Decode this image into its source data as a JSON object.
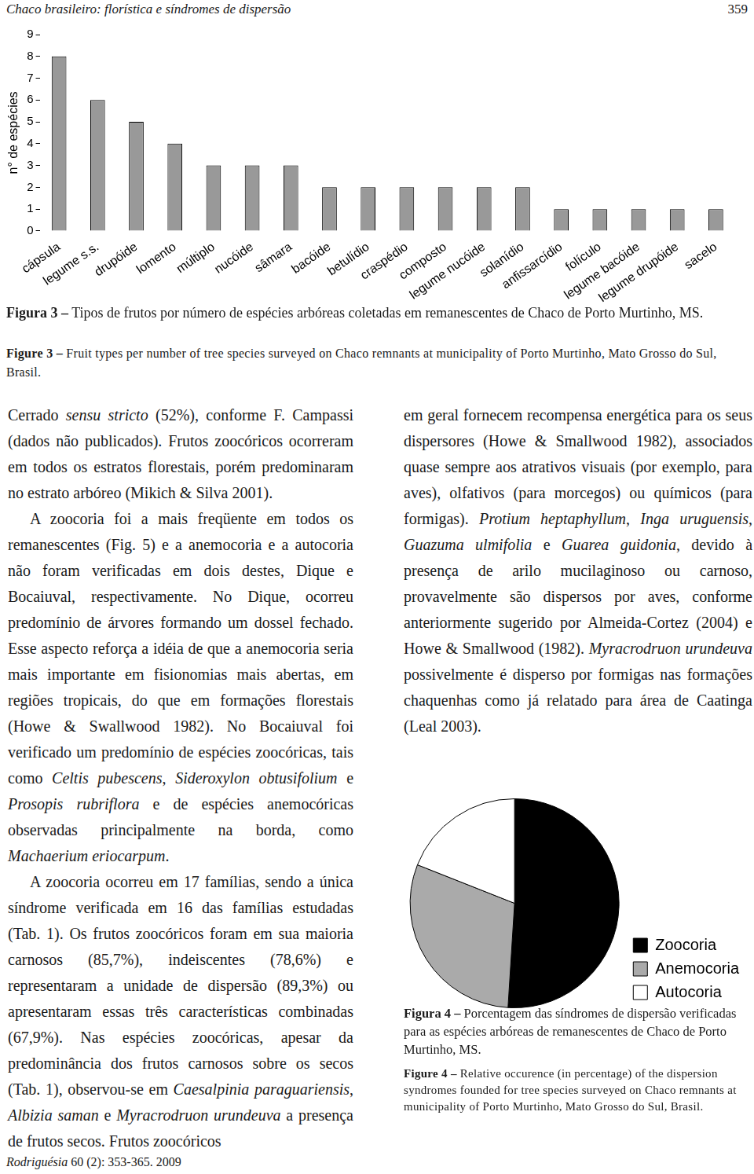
{
  "header": {
    "title": "Chaco brasileiro: florística e síndromes de dispersão",
    "page": "359"
  },
  "chart_data": [
    {
      "type": "bar",
      "ylabel": "n° de espécies",
      "categories": [
        "cápsula",
        "legume s.s.",
        "drupóide",
        "lomento",
        "múltiplo",
        "nucóide",
        "sâmara",
        "bacóide",
        "betulídio",
        "craspédio",
        "composto",
        "legume nucóide",
        "solanídio",
        "anfissarcídio",
        "folículo",
        "legume bacóide",
        "legume drupóide",
        "sacelo"
      ],
      "values": [
        8,
        6,
        5,
        4,
        3,
        3,
        3,
        2,
        2,
        2,
        2,
        2,
        2,
        1,
        1,
        1,
        1,
        1
      ],
      "color": "#999999",
      "ylim": [
        0,
        9
      ],
      "yticks": [
        0,
        1,
        2,
        3,
        4,
        5,
        6,
        7,
        8,
        9
      ],
      "grid": false
    },
    {
      "type": "pie",
      "categories": [
        "Zoocoria",
        "Anemocoria",
        "Autocoria"
      ],
      "values": [
        51,
        30,
        19
      ],
      "colors": [
        "#000000",
        "#aaaaaa",
        "#ffffff"
      ],
      "legend": "right"
    }
  ],
  "figure3_caption": {
    "pt": {
      "label": "Figura 3 –",
      "text": "Tipos de frutos por número de espécies arbóreas coletadas em remanescentes de Chaco de Porto Murtinho, MS."
    },
    "en": {
      "label": "Figure 3 –",
      "text": "Fruit types per number of tree species surveyed on Chaco remnants at municipality of Porto Murtinho, Mato Grosso do Sul, Brasil."
    }
  },
  "figure4_caption": {
    "pt": {
      "label": "Figura 4 –",
      "text": "Porcentagem das síndromes de dispersão verificadas para as espécies arbóreas de remanescentes de Chaco de Porto Murtinho, MS."
    },
    "en": {
      "label": "Figure 4 –",
      "text": "Relative occurence (in percentage) of the dispersion syndromes founded for tree species surveyed on Chaco remnants at municipality of Porto Murtinho, Mato Grosso do Sul, Brasil."
    }
  },
  "left_column": [
    {
      "indent": false,
      "runs": [
        "Cerrado ",
        {
          "em": "sensu stricto"
        },
        " (52%), conforme F. Campassi (dados não publicados). Frutos zoocóricos ocorreram em todos os estratos florestais, porém predominaram no estrato arbóreo (Mikich & Silva 2001)."
      ]
    },
    {
      "indent": true,
      "runs": [
        "A zoocoria foi a mais freqüente em todos os remanescentes (Fig. 5) e a anemocoria e a autocoria não foram verificadas em dois destes, Dique e Bocaiuval, respectivamente. No Dique, ocorreu predomínio de árvores formando um dossel fechado. Esse aspecto reforça a idéia de que a anemocoria seria mais importante em fisionomias mais abertas, em regiões tropicais, do que em formações florestais (Howe & Swallwood 1982). No Bocaiuval foi verificado um predomínio de espécies zoocóricas, tais como ",
        {
          "em": "Celtis pubescens"
        },
        ", ",
        {
          "em": "Sideroxylon obtusifolium"
        },
        " e ",
        {
          "em": "Prosopis rubriflora"
        },
        " e de espécies anemocóricas observadas principalmente na borda, como ",
        {
          "em": "Machaerium eriocarpum"
        },
        "."
      ]
    },
    {
      "indent": true,
      "runs": [
        "A zoocoria ocorreu em 17 famílias, sendo a única síndrome verificada em 16 das famílias estudadas (Tab. 1). Os frutos zoocóricos foram em sua maioria carnosos (85,7%), indeiscentes (78,6%) e representaram a unidade de dispersão (89,3%) ou apresentaram essas três características combinadas (67,9%). Nas espécies zoocóricas, apesar da predominância dos frutos carnosos sobre os secos (Tab. 1), observou-se em ",
        {
          "em": "Caesalpinia paraguariensis"
        },
        ", ",
        {
          "em": "Albizia saman"
        },
        " e ",
        {
          "em": "Myracrodruon urundeuva"
        },
        " a presença de frutos secos. Frutos zoocóricos"
      ]
    }
  ],
  "right_column": [
    {
      "indent": false,
      "runs": [
        "em geral fornecem recompensa energética para os seus dispersores (Howe & Smallwood 1982), associados quase sempre aos atrativos visuais (por exemplo, para aves), olfativos (para morcegos) ou químicos (para formigas). ",
        {
          "em": "Protium heptaphyllum"
        },
        ", ",
        {
          "em": "Inga uruguensis"
        },
        ", ",
        {
          "em": "Guazuma ulmifolia"
        },
        " e ",
        {
          "em": "Guarea guidonia"
        },
        ", devido à presença de arilo mucilaginoso ou carnoso, provavelmente são dispersos por aves, conforme anteriormente sugerido por Almeida-Cortez (2004) e Howe & Smallwood (1982). ",
        {
          "em": "Myracrodruon urundeuva"
        },
        " possivelmente é disperso por formigas nas formações chaquenhas como já relatado para área de Caatinga (Leal 2003)."
      ]
    }
  ],
  "footer": [
    {
      "em": "Rodriguésia"
    },
    " 60 (2): 353-365. 2009"
  ]
}
